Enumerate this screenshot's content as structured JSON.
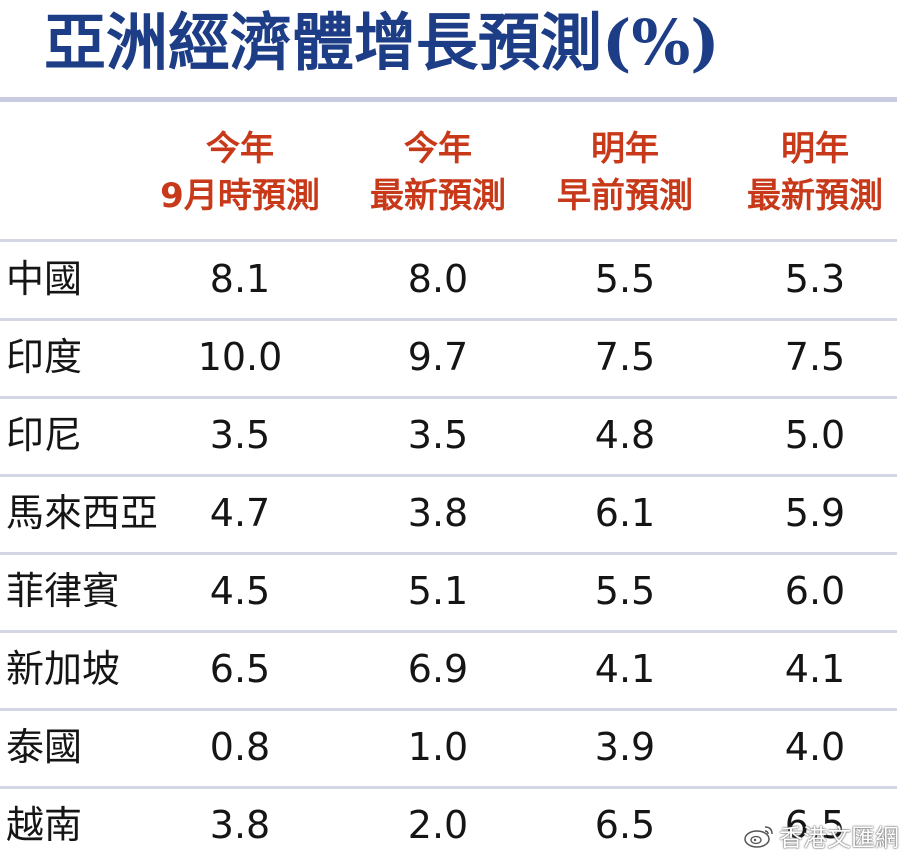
{
  "chart_data": {
    "type": "table",
    "title": "亞洲經濟體增長預測(%)",
    "columns": [
      {
        "line1": "今年",
        "line2": "9月時預測"
      },
      {
        "line1": "今年",
        "line2": "最新預測"
      },
      {
        "line1": "明年",
        "line2": "早前預測"
      },
      {
        "line1": "明年",
        "line2": "最新預測"
      }
    ],
    "rows": [
      {
        "country": "中國",
        "values": [
          "8.1",
          "8.0",
          "5.5",
          "5.3"
        ]
      },
      {
        "country": "印度",
        "values": [
          "10.0",
          "9.7",
          "7.5",
          "7.5"
        ]
      },
      {
        "country": "印尼",
        "values": [
          "3.5",
          "3.5",
          "4.8",
          "5.0"
        ]
      },
      {
        "country": "馬來西亞",
        "values": [
          "4.7",
          "3.8",
          "6.1",
          "5.9"
        ]
      },
      {
        "country": "菲律賓",
        "values": [
          "4.5",
          "5.1",
          "5.5",
          "6.0"
        ]
      },
      {
        "country": "新加坡",
        "values": [
          "6.5",
          "6.9",
          "4.1",
          "4.1"
        ]
      },
      {
        "country": "泰國",
        "values": [
          "0.8",
          "1.0",
          "3.9",
          "4.0"
        ]
      },
      {
        "country": "越南",
        "values": [
          "3.8",
          "2.0",
          "6.5",
          "6.5"
        ]
      }
    ]
  },
  "watermark": "香港文匯網",
  "colors": {
    "title": "#1d3d86",
    "header": "#c8391a",
    "rule": "#d5d6e6",
    "text": "#151515"
  }
}
